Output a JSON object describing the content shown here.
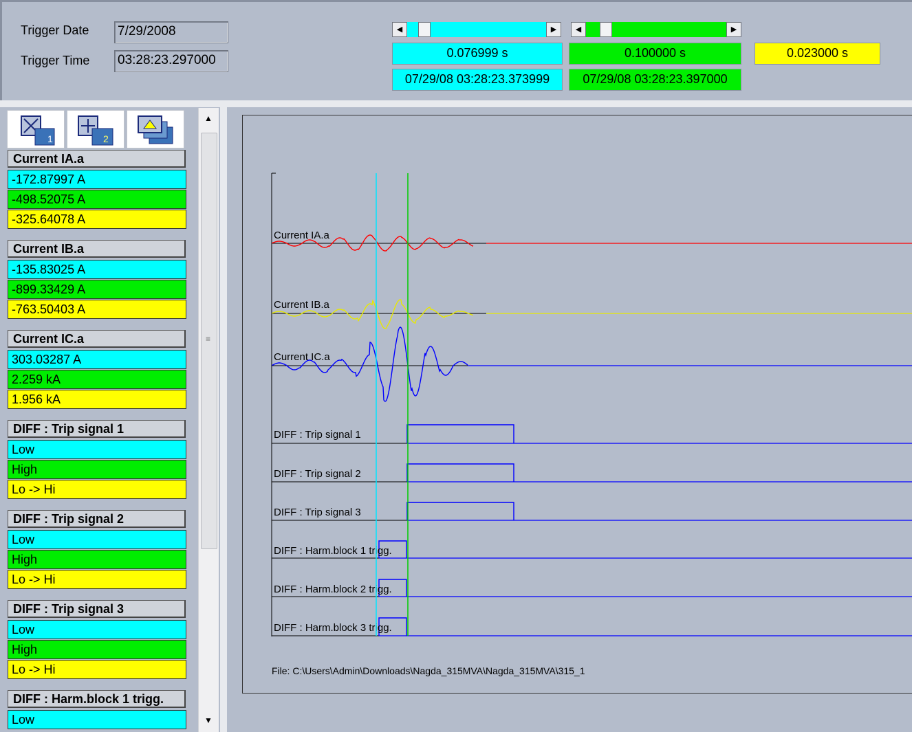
{
  "trigger": {
    "date_label": "Trigger Date",
    "date_value": "7/29/2008",
    "time_label": "Trigger Time",
    "time_value": "03:28:23.297000"
  },
  "cursors": {
    "cursor1": {
      "delta": "0.076999 s",
      "timestamp": "07/29/08 03:28:23.373999",
      "color": "#00ffff"
    },
    "cursor2": {
      "delta": "0.100000 s",
      "timestamp": "07/29/08 03:28:23.397000",
      "color": "#00ee00"
    },
    "difference": {
      "delta": "0.023000 s",
      "color": "#ffff00"
    }
  },
  "toolbar": {
    "buttons": [
      {
        "icon": "cursor-1-icon",
        "glyph": "1"
      },
      {
        "icon": "cursor-2-icon",
        "glyph": "2"
      },
      {
        "icon": "layers-icon",
        "glyph": ""
      }
    ]
  },
  "channels": [
    {
      "name": "Current IA.a",
      "c1": "-172.87997 A",
      "c2": "-498.52075 A",
      "diff": "-325.64078 A"
    },
    {
      "name": "Current IB.a",
      "c1": "-135.83025 A",
      "c2": "-899.33429 A",
      "diff": "-763.50403 A"
    },
    {
      "name": "Current IC.a",
      "c1": "303.03287 A",
      "c2": "2.259 kA",
      "diff": "1.956 kA"
    },
    {
      "name": "DIFF : Trip signal 1",
      "c1": "Low",
      "c2": "High",
      "diff": "Lo -> Hi"
    },
    {
      "name": "DIFF : Trip signal 2",
      "c1": "Low",
      "c2": "High",
      "diff": "Lo -> Hi"
    },
    {
      "name": "DIFF : Trip signal 3",
      "c1": "Low",
      "c2": "High",
      "diff": "Lo -> Hi"
    },
    {
      "name": "DIFF : Harm.block 1 trigg.",
      "c1": "Low"
    }
  ],
  "plot": {
    "traces": [
      {
        "label": "Current IA.a",
        "kind": "analog",
        "color": "#ff0000"
      },
      {
        "label": "Current IB.a",
        "kind": "analog",
        "color": "#e8e800"
      },
      {
        "label": "Current IC.a",
        "kind": "analog",
        "color": "#0000ff"
      },
      {
        "label": "DIFF : Trip signal 1",
        "kind": "digital",
        "color": "#0000ff"
      },
      {
        "label": "DIFF : Trip signal 2",
        "kind": "digital",
        "color": "#0000ff"
      },
      {
        "label": "DIFF : Trip signal 3",
        "kind": "digital",
        "color": "#0000ff"
      },
      {
        "label": "DIFF : Harm.block 1 trigg.",
        "kind": "digital",
        "color": "#0000ff"
      },
      {
        "label": "DIFF : Harm.block 2 trigg.",
        "kind": "digital",
        "color": "#0000ff"
      },
      {
        "label": "DIFF : Harm.block 3 trigg.",
        "kind": "digital",
        "color": "#0000ff"
      }
    ],
    "file_path": "File: C:\\Users\\Admin\\Downloads\\Nagda_315MVA\\Nagda_315MVA\\315_1"
  }
}
